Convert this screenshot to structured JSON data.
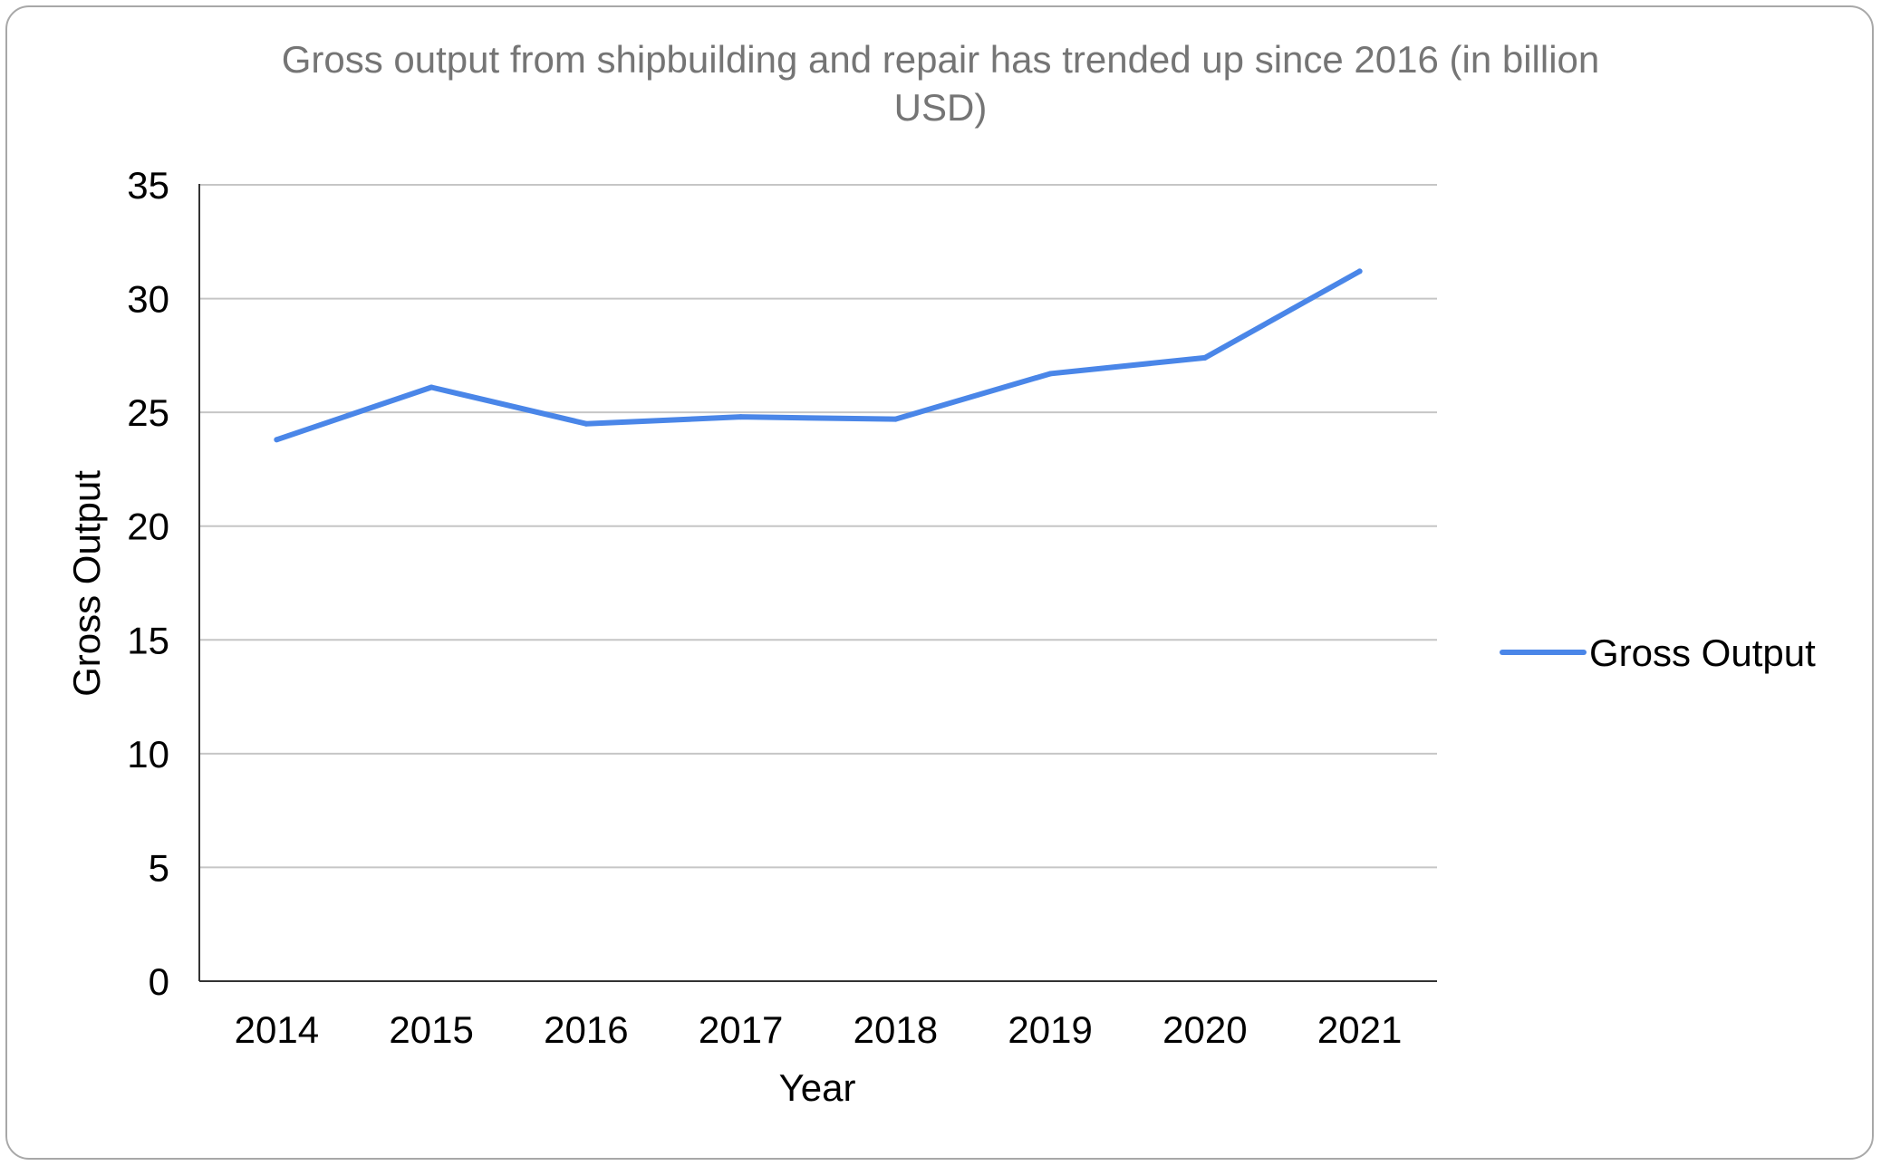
{
  "chart_data": {
    "type": "line",
    "title_lines": [
      "Gross output from shipbuilding and repair has trended up since 2016 (in billion",
      "USD)"
    ],
    "xlabel": "Year",
    "ylabel": "Gross Output",
    "categories": [
      "2014",
      "2015",
      "2016",
      "2017",
      "2018",
      "2019",
      "2020",
      "2021"
    ],
    "series": [
      {
        "name": "Gross Output",
        "values": [
          23.8,
          26.1,
          24.5,
          24.8,
          24.7,
          26.7,
          27.4,
          31.2
        ]
      }
    ],
    "ylim": [
      0,
      35
    ],
    "yticks": [
      "0",
      "5",
      "10",
      "15",
      "20",
      "25",
      "30",
      "35"
    ],
    "grid": true,
    "legend_position": "right",
    "colors": {
      "series": "#4a86e8",
      "grid": "#c6c6c6",
      "axis": "#333333",
      "title": "#757575"
    }
  }
}
